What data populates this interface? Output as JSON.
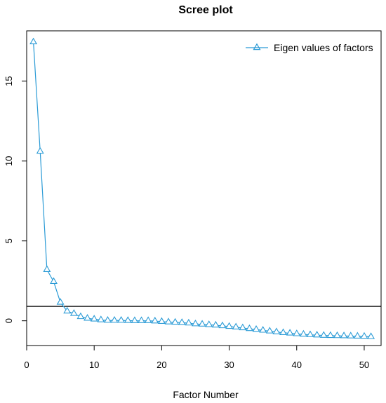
{
  "chart_data": {
    "type": "line",
    "title": "Scree plot",
    "xlabel": "Factor Number",
    "ylabel": "",
    "xlim": [
      0,
      52.5
    ],
    "ylim": [
      -1.55,
      18.15
    ],
    "x_ticks": [
      0,
      10,
      20,
      30,
      40,
      50
    ],
    "y_ticks": [
      0,
      5,
      10,
      15
    ],
    "x_tick_labels": [
      "0",
      "10",
      "20",
      "30",
      "40",
      "50"
    ],
    "y_tick_labels": [
      "0",
      "5",
      "10",
      "15"
    ],
    "reference_line": {
      "y": 0.9,
      "orientation": "horizontal",
      "color": "#000000"
    },
    "legend": {
      "position": "top-right",
      "boxed": false
    },
    "marker": "open-triangle",
    "colors": {
      "series": "#2b9bd6",
      "reference": "#000000",
      "axes": "#000000"
    },
    "series": [
      {
        "name": "Eigen values of factors",
        "x": [
          1,
          2,
          3,
          4,
          5,
          6,
          7,
          8,
          9,
          10,
          11,
          12,
          13,
          14,
          15,
          16,
          17,
          18,
          19,
          20,
          21,
          22,
          23,
          24,
          25,
          26,
          27,
          28,
          29,
          30,
          31,
          32,
          33,
          34,
          35,
          36,
          37,
          38,
          39,
          40,
          41,
          42,
          43,
          44,
          45,
          46,
          47,
          48,
          49,
          50,
          51
        ],
        "values": [
          17.45,
          10.6,
          3.2,
          2.45,
          1.15,
          0.6,
          0.45,
          0.25,
          0.15,
          0.1,
          0.05,
          0.02,
          0.02,
          0.02,
          0.01,
          0.0,
          0.0,
          0.0,
          -0.02,
          -0.05,
          -0.08,
          -0.1,
          -0.12,
          -0.15,
          -0.2,
          -0.22,
          -0.25,
          -0.28,
          -0.32,
          -0.36,
          -0.4,
          -0.45,
          -0.5,
          -0.55,
          -0.6,
          -0.65,
          -0.7,
          -0.75,
          -0.78,
          -0.82,
          -0.85,
          -0.88,
          -0.9,
          -0.92,
          -0.93,
          -0.94,
          -0.95,
          -0.96,
          -0.97,
          -0.98,
          -1.0
        ]
      }
    ]
  }
}
